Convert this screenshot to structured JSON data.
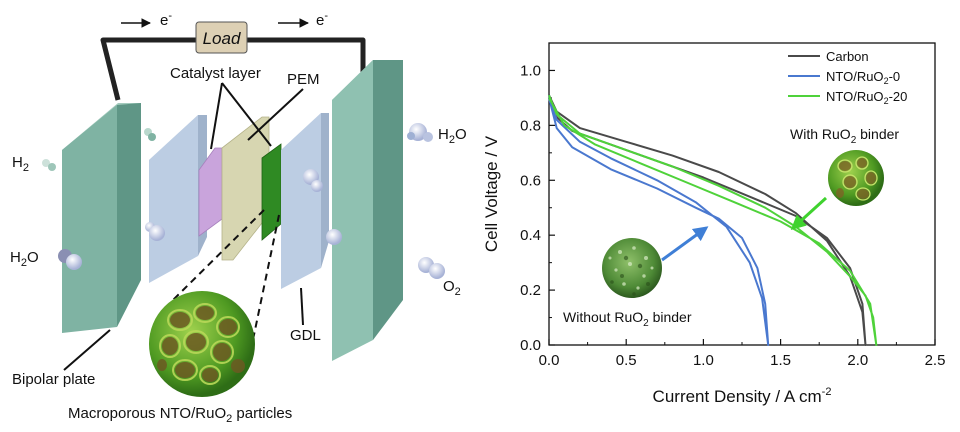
{
  "schematic": {
    "load_label": "Load",
    "electron_left": "e",
    "electron_right": "e",
    "electron_sup": "-",
    "catalyst_layer": "Catalyst layer",
    "pem": "PEM",
    "gdl": "GDL",
    "bipolar_plate": "Bipolar plate",
    "particles_pre": "Macroporous NTO/RuO",
    "particles_sub": "2",
    "particles_post": " particles",
    "h2_main": "H",
    "h2_sub": "2",
    "h2o_left_pre": "H",
    "h2o_left_sub": "2",
    "h2o_left_post": "O",
    "h2o_right_pre": "H",
    "h2o_right_sub": "2",
    "h2o_right_post": "O",
    "o2_main": "O",
    "o2_sub": "2",
    "colors": {
      "bipolar": "#7fb3a3",
      "gdl": "#bccde3",
      "catalyst_anode": "#c9a4dc",
      "pem": "#d7d6b1",
      "catalyst_cathode": "#2f8a23",
      "particle": "#6aa52a"
    }
  },
  "chart_data": {
    "type": "line",
    "xlabel_pre": "Current Density / A cm",
    "xlabel_sup": "-2",
    "ylabel": "Cell Voltage / V",
    "xlim": [
      0,
      2.5
    ],
    "ylim": [
      0,
      1.1
    ],
    "xticks": [
      "0.0",
      "0.5",
      "1.0",
      "1.5",
      "2.0",
      "2.5"
    ],
    "yticks": [
      "0.0",
      "0.2",
      "0.4",
      "0.6",
      "0.8",
      "1.0"
    ],
    "grid": false,
    "legend_position": "top-right",
    "series": [
      {
        "name": "Carbon",
        "name_sub": "",
        "name_post": "",
        "color": "#4a4a4a",
        "x": [
          0.0,
          0.05,
          0.2,
          0.5,
          0.8,
          1.1,
          1.4,
          1.6,
          1.8,
          1.95,
          2.03,
          2.05,
          2.03,
          1.95,
          1.8,
          1.6,
          1.3,
          1.0,
          0.7,
          0.4,
          0.15,
          0.05,
          0.0
        ],
        "y": [
          0.91,
          0.85,
          0.79,
          0.74,
          0.69,
          0.63,
          0.55,
          0.48,
          0.38,
          0.25,
          0.12,
          0.0,
          0.15,
          0.28,
          0.39,
          0.47,
          0.54,
          0.61,
          0.67,
          0.73,
          0.78,
          0.83,
          0.9
        ]
      },
      {
        "name": "NTO/RuO",
        "name_sub": "2",
        "name_post": "-0",
        "color": "#4a78cf",
        "x": [
          0.0,
          0.05,
          0.2,
          0.4,
          0.7,
          0.95,
          1.15,
          1.3,
          1.38,
          1.42,
          1.4,
          1.35,
          1.25,
          1.1,
          0.95,
          0.7,
          0.4,
          0.15,
          0.05,
          0.0
        ],
        "y": [
          0.91,
          0.82,
          0.74,
          0.68,
          0.6,
          0.52,
          0.43,
          0.3,
          0.17,
          0.0,
          0.15,
          0.28,
          0.39,
          0.46,
          0.5,
          0.57,
          0.64,
          0.72,
          0.79,
          0.9
        ]
      },
      {
        "name": "NTO/RuO",
        "name_sub": "2",
        "name_post": "-20",
        "color": "#4fd23a",
        "x": [
          0.0,
          0.05,
          0.2,
          0.5,
          0.8,
          1.1,
          1.4,
          1.6,
          1.8,
          1.95,
          2.05,
          2.1,
          2.12,
          2.08,
          1.95,
          1.75,
          1.5,
          1.2,
          0.9,
          0.6,
          0.3,
          0.1,
          0.0
        ],
        "y": [
          0.91,
          0.84,
          0.77,
          0.71,
          0.65,
          0.58,
          0.5,
          0.43,
          0.34,
          0.25,
          0.18,
          0.1,
          0.0,
          0.15,
          0.27,
          0.37,
          0.45,
          0.52,
          0.59,
          0.66,
          0.73,
          0.8,
          0.9
        ]
      }
    ],
    "annotations": {
      "with_pre": "With RuO",
      "with_sub": "2",
      "with_post": " binder",
      "without_pre": "Without RuO",
      "without_sub": "2",
      "without_post": " binder",
      "with_arrow_color": "#3fd22e",
      "without_arrow_color": "#3f7fd6"
    }
  }
}
